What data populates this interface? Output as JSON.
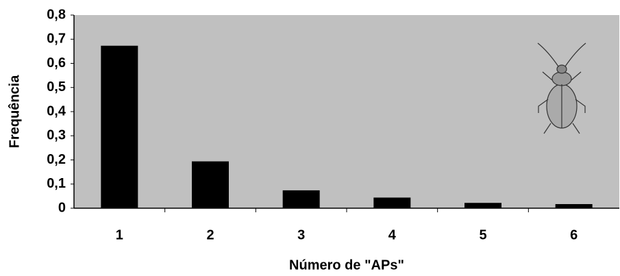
{
  "chart_data": {
    "type": "bar",
    "x_label": "Número de \"APs\"",
    "y_label": "Frequência",
    "categories": [
      "1",
      "2",
      "3",
      "4",
      "5",
      "6"
    ],
    "values": [
      0.673,
      0.194,
      0.074,
      0.044,
      0.022,
      0.017
    ],
    "color": "#000000",
    "background": "#c0c0c0",
    "ylim": [
      0,
      0.8
    ],
    "yticks": [
      0,
      {
        "value": 0.1,
        "label": "0,1"
      },
      {
        "value": 0.2,
        "label": "0,2"
      },
      {
        "value": 0.3,
        "label": "0,3"
      },
      {
        "value": 0.4,
        "label": "0,4"
      },
      {
        "value": 0.5,
        "label": "0,5"
      },
      {
        "value": 0.6,
        "label": "0,6"
      },
      {
        "value": 0.7,
        "label": "0,7"
      },
      {
        "value": 0.8,
        "label": "0,8"
      }
    ],
    "grid": false
  }
}
